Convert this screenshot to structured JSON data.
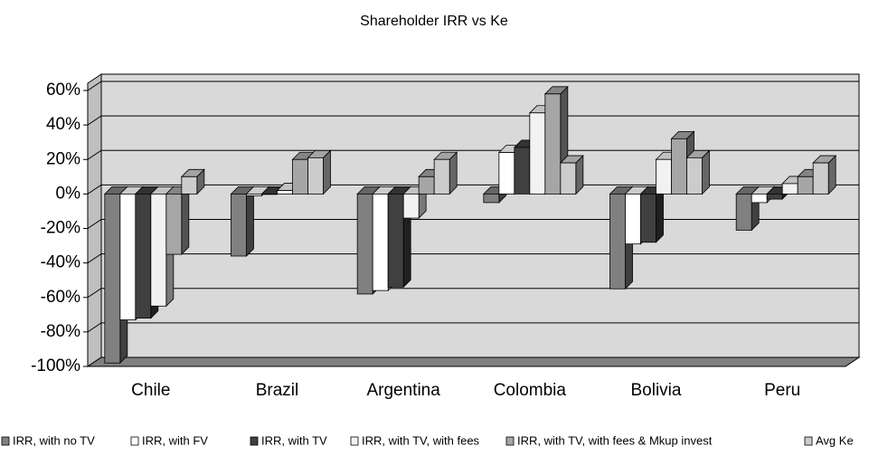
{
  "chart_data": {
    "type": "bar3d",
    "title": "Shareholder IRR vs Ke",
    "categories": [
      "Chile",
      "Brazil",
      "Argentina",
      "Colombia",
      "Bolivia",
      "Peru"
    ],
    "series": [
      {
        "name": "IRR, with no TV",
        "color": "#808080",
        "values": [
          -98,
          -36,
          -58,
          -5,
          -55,
          -21
        ]
      },
      {
        "name": "IRR, with FV",
        "color": "#ffffff",
        "values": [
          -73,
          -1,
          -56,
          24,
          -29,
          -5
        ]
      },
      {
        "name": "IRR, with TV",
        "color": "#404040",
        "values": [
          -72,
          0,
          -54,
          27,
          -28,
          -3
        ]
      },
      {
        "name": "IRR, with TV, with fees",
        "color": "#f2f2f2",
        "values": [
          -65,
          2,
          -14,
          47,
          20,
          6
        ]
      },
      {
        "name": "IRR, with TV, with fees & Mkup invest",
        "color": "#a6a6a6",
        "values": [
          -35,
          20,
          10,
          58,
          32,
          10
        ]
      },
      {
        "name": "Avg Ke",
        "color": "#cccccc",
        "values": [
          10,
          21,
          20,
          18,
          21,
          18
        ]
      }
    ],
    "ylim": [
      -100,
      60
    ],
    "yticks": [
      {
        "value": -100,
        "label": "-100%"
      },
      {
        "value": -80,
        "label": "-80%"
      },
      {
        "value": -60,
        "label": "-60%"
      },
      {
        "value": -40,
        "label": "-40%"
      },
      {
        "value": -20,
        "label": "-20%"
      },
      {
        "value": 0,
        "label": "0%"
      },
      {
        "value": 20,
        "label": "20%"
      },
      {
        "value": 40,
        "label": "40%"
      },
      {
        "value": 60,
        "label": "60%"
      }
    ],
    "grid": true,
    "legend": "bottom"
  }
}
